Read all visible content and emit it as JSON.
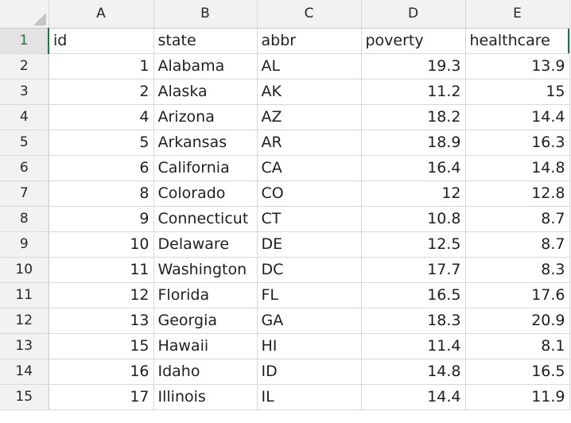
{
  "columns": [
    "A",
    "B",
    "C",
    "D",
    "E"
  ],
  "rows": [
    {
      "n": "1",
      "cells": [
        "id",
        "state",
        "abbr",
        "poverty",
        "healthcare"
      ]
    },
    {
      "n": "2",
      "cells": [
        "1",
        "Alabama",
        "AL",
        "19.3",
        "13.9"
      ]
    },
    {
      "n": "3",
      "cells": [
        "2",
        "Alaska",
        "AK",
        "11.2",
        "15"
      ]
    },
    {
      "n": "4",
      "cells": [
        "4",
        "Arizona",
        "AZ",
        "18.2",
        "14.4"
      ]
    },
    {
      "n": "5",
      "cells": [
        "5",
        "Arkansas",
        "AR",
        "18.9",
        "16.3"
      ]
    },
    {
      "n": "6",
      "cells": [
        "6",
        "California",
        "CA",
        "16.4",
        "14.8"
      ]
    },
    {
      "n": "7",
      "cells": [
        "8",
        "Colorado",
        "CO",
        "12",
        "12.8"
      ]
    },
    {
      "n": "8",
      "cells": [
        "9",
        "Connecticut",
        "CT",
        "10.8",
        "8.7"
      ]
    },
    {
      "n": "9",
      "cells": [
        "10",
        "Delaware",
        "DE",
        "12.5",
        "8.7"
      ]
    },
    {
      "n": "10",
      "cells": [
        "11",
        "Washington",
        "DC",
        "17.7",
        "8.3"
      ]
    },
    {
      "n": "11",
      "cells": [
        "12",
        "Florida",
        "FL",
        "16.5",
        "17.6"
      ]
    },
    {
      "n": "12",
      "cells": [
        "13",
        "Georgia",
        "GA",
        "18.3",
        "20.9"
      ]
    },
    {
      "n": "13",
      "cells": [
        "15",
        "Hawaii",
        "HI",
        "11.4",
        "8.1"
      ]
    },
    {
      "n": "14",
      "cells": [
        "16",
        "Idaho",
        "ID",
        "14.8",
        "16.5"
      ]
    },
    {
      "n": "15",
      "cells": [
        "17",
        "Illinois",
        "IL",
        "14.4",
        "11.9"
      ]
    }
  ],
  "colors": {
    "accent": "#217346",
    "header_bg": "#f2f2f2",
    "gridline": "#d8d8d8"
  },
  "corner_icon": "select-all-triangle-icon"
}
